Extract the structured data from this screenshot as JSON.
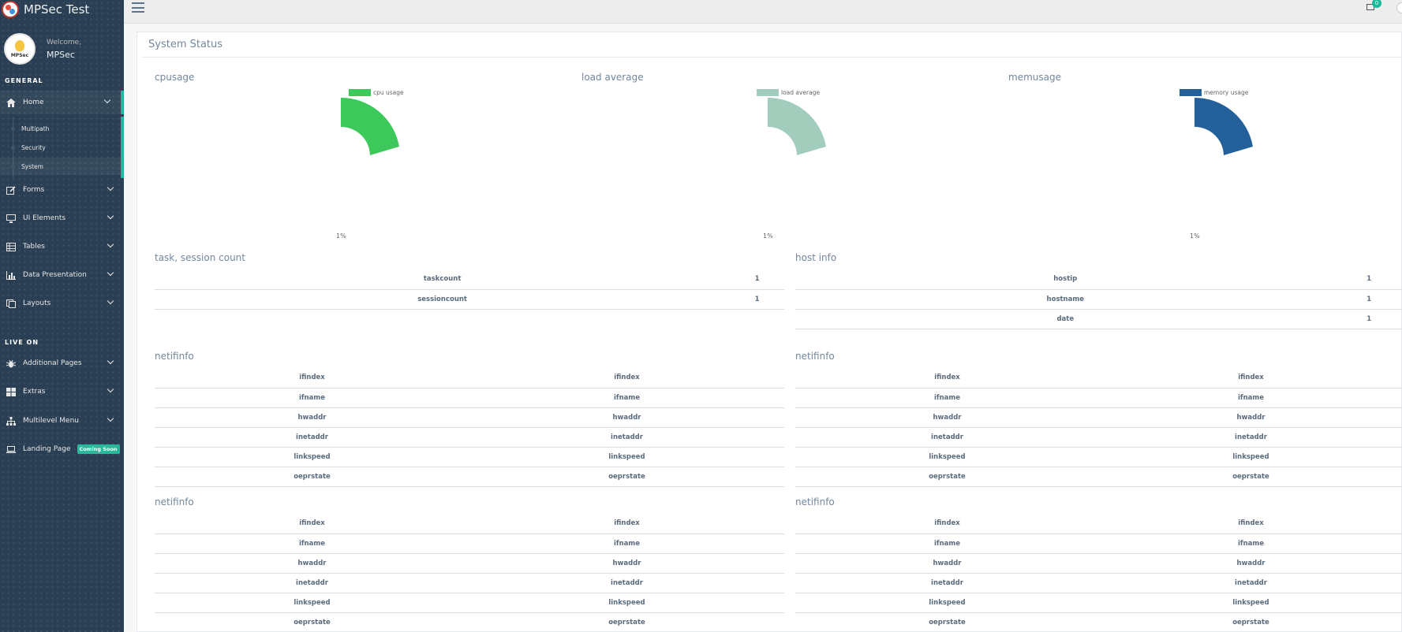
{
  "brand": {
    "title": "MPSec Test"
  },
  "profile": {
    "welcome": "Welcome,",
    "user": "MPSec",
    "avatar_text": "MPSec"
  },
  "sidebar": {
    "section_general": "GENERAL",
    "section_live": "LIVE ON",
    "home": {
      "label": "Home",
      "icon": "home-icon"
    },
    "home_sub": [
      {
        "label": "Multipath"
      },
      {
        "label": "Security"
      },
      {
        "label": "System"
      }
    ],
    "general_items": [
      {
        "label": "Forms",
        "icon": "edit-icon"
      },
      {
        "label": "UI Elements",
        "icon": "desktop-icon"
      },
      {
        "label": "Tables",
        "icon": "table-icon"
      },
      {
        "label": "Data Presentation",
        "icon": "bar-chart-icon"
      },
      {
        "label": "Layouts",
        "icon": "clone-icon"
      }
    ],
    "live_items": [
      {
        "label": "Additional Pages",
        "icon": "bug-icon"
      },
      {
        "label": "Extras",
        "icon": "windows-icon"
      },
      {
        "label": "Multilevel Menu",
        "icon": "sitemap-icon"
      },
      {
        "label": "Landing Page",
        "icon": "laptop-icon",
        "badge": "Coming Soon"
      }
    ]
  },
  "topbar": {
    "mail_count": "0"
  },
  "panel": {
    "title": "System Status"
  },
  "charts": [
    {
      "title": "cpusage",
      "legend": "cpu usage",
      "color": "#3cc85a",
      "value_label": "1%"
    },
    {
      "title": "load average",
      "legend": "load average",
      "color": "#a2cdbd",
      "value_label": "1%"
    },
    {
      "title": "memusage",
      "legend": "memory usage",
      "color": "#24609a",
      "value_label": "1%"
    }
  ],
  "task_table": {
    "title": "task, session count",
    "rows": [
      [
        "taskcount",
        "1"
      ],
      [
        "sessioncount",
        "1"
      ]
    ]
  },
  "host_table": {
    "title": "host info",
    "rows": [
      [
        "hostip",
        "1"
      ],
      [
        "hostname",
        "1"
      ],
      [
        "date",
        "1"
      ]
    ]
  },
  "netif": {
    "title": "netifinfo",
    "rows": [
      "ifindex",
      "ifname",
      "hwaddr",
      "inetaddr",
      "linkspeed",
      "oeprstate"
    ]
  }
}
